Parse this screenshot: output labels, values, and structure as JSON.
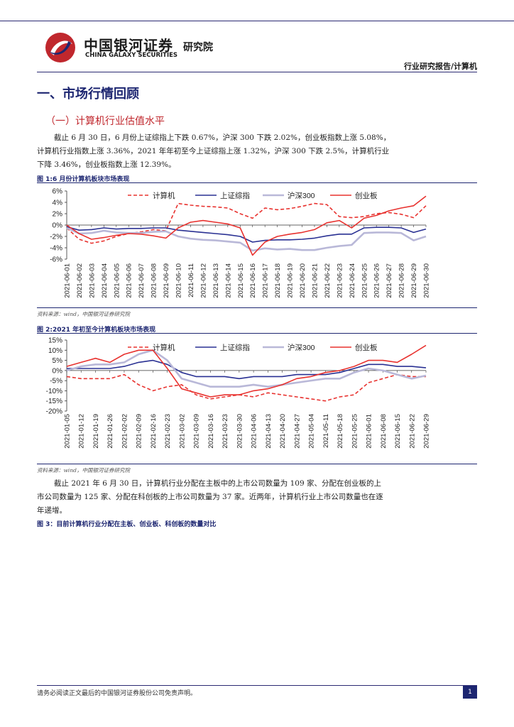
{
  "header": {
    "logo_cn": "中国银河证券",
    "logo_en": "CHINA GALAXY SECURITIES",
    "institute": "研究院",
    "report_type": "行业研究报告/计算机"
  },
  "section": {
    "h1": "一、市场行情回顾",
    "h2": "（一）计算机行业估值水平"
  },
  "para1": "截止 6 月 30 日，6 月份上证综指上下跌 0.67%，沪深 300 下跌 2.02%，创业板指数上涨 5.08%，计算机行业指数上涨 3.36%，2021 年年初至今上证综指上涨 1.32%，沪深 300 下跌 2.5%，计算机行业下降 3.46%，创业板指数上涨 12.39%。",
  "fig1": {
    "title": "图 1:6 月份计算机板块市场表现",
    "source": "资料来源：wind，中国银河证券研究院"
  },
  "fig2": {
    "title": "图 2:2021 年初至今计算机板块市场表现",
    "source": "资料来源：wind，中国银河证券研究院"
  },
  "para2": "截止 2021 年 6 月 30 日，计算机行业分配在主板中的上市公司数量为 109 家、分配在创业板的上市公司数量为 125 家、分配在科创板的上市公司数量为 37 家。近两年，计算机行业上市公司数量也在逐年递增。",
  "fig3": {
    "title": "图 3：目前计算机行业分配在主板、创业板、科创板的数量对比"
  },
  "footer": {
    "disclaimer": "请务必阅读正文最后的中国银河证券股份公司免责声明。",
    "page": "1"
  },
  "chart_data": [
    {
      "type": "line",
      "ylim": [
        -6,
        6
      ],
      "yticks": [
        "6%",
        "4%",
        "2%",
        "0%",
        "-2%",
        "-4%",
        "-6%"
      ],
      "x": [
        "2021-06-01",
        "2021-06-02",
        "2021-06-03",
        "2021-06-04",
        "2021-06-05",
        "2021-06-06",
        "2021-06-07",
        "2021-06-08",
        "2021-06-09",
        "2021-06-10",
        "2021-06-11",
        "2021-06-12",
        "2021-06-13",
        "2021-06-14",
        "2021-06-15",
        "2021-06-16",
        "2021-06-17",
        "2021-06-18",
        "2021-06-19",
        "2021-06-20",
        "2021-06-21",
        "2021-06-22",
        "2021-06-23",
        "2021-06-24",
        "2021-06-25",
        "2021-06-26",
        "2021-06-27",
        "2021-06-28",
        "2021-06-29",
        "2021-06-30"
      ],
      "series": [
        {
          "name": "计算机",
          "color": "#e8322f",
          "dash": true,
          "values": [
            -0.5,
            -2.5,
            -3.2,
            -2.8,
            -2.0,
            -1.5,
            -1.2,
            -0.8,
            -1.0,
            3.8,
            3.5,
            3.3,
            3.2,
            3.0,
            2.0,
            1.2,
            3.0,
            2.7,
            2.9,
            3.3,
            3.8,
            3.6,
            1.5,
            1.3,
            1.5,
            2.0,
            2.2,
            1.9,
            1.3,
            3.4
          ]
        },
        {
          "name": "上证综指",
          "color": "#2a3193",
          "dash": false,
          "values": [
            -0.3,
            -0.9,
            -0.8,
            -0.5,
            -0.7,
            -0.6,
            -0.6,
            -0.5,
            -0.5,
            -0.9,
            -1.1,
            -1.3,
            -1.5,
            -1.7,
            -2.0,
            -3.0,
            -2.7,
            -2.6,
            -2.6,
            -2.5,
            -2.3,
            -1.9,
            -1.6,
            -1.6,
            -0.5,
            -0.4,
            -0.4,
            -0.5,
            -1.3,
            -0.7
          ]
        },
        {
          "name": "沪深300",
          "color": "#b9b8d8",
          "dash": false,
          "values": [
            -0.5,
            -1.5,
            -1.4,
            -1.0,
            -1.3,
            -1.4,
            -1.4,
            -1.2,
            -1.1,
            -2.0,
            -2.4,
            -2.6,
            -2.7,
            -2.9,
            -3.1,
            -4.5,
            -4.1,
            -4.3,
            -4.2,
            -4.4,
            -4.4,
            -4.0,
            -3.7,
            -3.5,
            -1.4,
            -1.3,
            -1.3,
            -1.4,
            -2.7,
            -2.0
          ]
        },
        {
          "name": "创业板",
          "color": "#e8322f",
          "dash": false,
          "values": [
            0.0,
            -1.5,
            -2.5,
            -2.2,
            -1.8,
            -1.5,
            -1.6,
            -1.9,
            -2.3,
            -0.5,
            0.5,
            0.8,
            0.5,
            0.2,
            -0.5,
            -5.3,
            -3.0,
            -2.0,
            -1.6,
            -1.3,
            -0.8,
            0.4,
            0.8,
            -0.5,
            1.2,
            1.7,
            2.5,
            3.0,
            3.4,
            5.1
          ]
        }
      ]
    },
    {
      "type": "line",
      "ylim": [
        -20,
        15
      ],
      "yticks": [
        "15%",
        "10%",
        "5%",
        "0%",
        "-5%",
        "-10%",
        "-15%",
        "-20%"
      ],
      "x": [
        "2021-01-05",
        "2021-01-12",
        "2021-01-19",
        "2021-01-26",
        "2021-02-02",
        "2021-02-09",
        "2021-02-16",
        "2021-02-23",
        "2021-03-02",
        "2021-03-09",
        "2021-03-16",
        "2021-03-23",
        "2021-03-30",
        "2021-04-06",
        "2021-04-13",
        "2021-04-20",
        "2021-04-27",
        "2021-05-04",
        "2021-05-11",
        "2021-05-18",
        "2021-05-25",
        "2021-06-01",
        "2021-06-08",
        "2021-06-15",
        "2021-06-22",
        "2021-06-29"
      ],
      "series": [
        {
          "name": "计算机",
          "color": "#e8322f",
          "dash": true,
          "values": [
            -3,
            -4,
            -4,
            -4,
            -2,
            -7,
            -10,
            -8,
            -7,
            -12,
            -14,
            -13,
            -12,
            -13,
            -11,
            -12,
            -13,
            -14,
            -15,
            -13,
            -12,
            -6,
            -4,
            -2,
            -3,
            -3
          ]
        },
        {
          "name": "上证综指",
          "color": "#2a3193",
          "dash": false,
          "values": [
            1,
            1,
            1,
            1,
            2,
            4,
            5,
            3,
            -1,
            -3,
            -3,
            -3,
            -4,
            -3,
            -3,
            -3,
            -2,
            -2,
            -2,
            -1,
            1,
            3,
            3,
            2,
            2,
            1.3
          ]
        },
        {
          "name": "沪深300",
          "color": "#b9b8d8",
          "dash": false,
          "values": [
            0,
            2,
            3,
            3,
            4,
            8,
            10,
            5,
            -4,
            -6,
            -8,
            -8,
            -8,
            -7,
            -8,
            -7,
            -6,
            -5,
            -4,
            -4,
            -1,
            1,
            0,
            -2,
            -4,
            -2.5
          ]
        },
        {
          "name": "创业板",
          "color": "#e8322f",
          "dash": false,
          "values": [
            2,
            4,
            6,
            4,
            8,
            10,
            10,
            1,
            -9,
            -11,
            -13,
            -12,
            -12,
            -10,
            -9,
            -7,
            -4,
            -3,
            -1,
            0,
            2,
            5,
            5,
            4,
            8,
            12.4
          ]
        }
      ]
    }
  ]
}
